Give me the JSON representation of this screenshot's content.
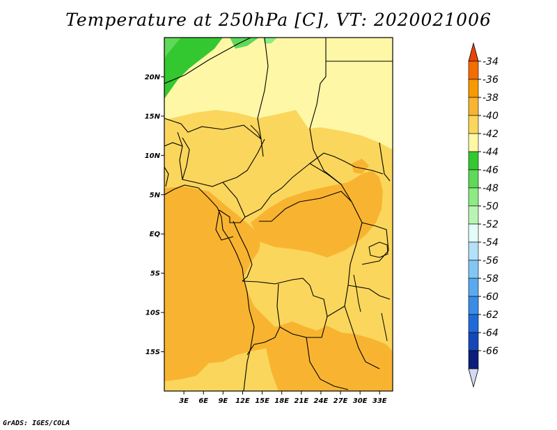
{
  "title": "Temperature at 250hPa [C], VT: 2020021006",
  "credit": "GrADS: IGES/COLA",
  "axes": {
    "lat_labels": [
      "20N",
      "15N",
      "10N",
      "5N",
      "EQ",
      "5S",
      "10S",
      "15S"
    ],
    "lat_values": [
      20,
      15,
      10,
      5,
      0,
      -5,
      -10,
      -15
    ],
    "lon_labels": [
      "3E",
      "6E",
      "9E",
      "12E",
      "15E",
      "18E",
      "21E",
      "24E",
      "27E",
      "30E",
      "33E"
    ],
    "lon_values": [
      3,
      6,
      9,
      12,
      15,
      18,
      21,
      24,
      27,
      30,
      33
    ],
    "lon_range": [
      0,
      35
    ],
    "lat_range": [
      -20,
      25
    ]
  },
  "colorbar": {
    "labels": [
      "-34",
      "-36",
      "-38",
      "-40",
      "-42",
      "-44",
      "-46",
      "-48",
      "-50",
      "-52",
      "-54",
      "-56",
      "-58",
      "-60",
      "-62",
      "-64",
      "-66"
    ],
    "colors": [
      "#e94400",
      "#f46d00",
      "#f59a00",
      "#f8b430",
      "#fbd65c",
      "#fef7a6",
      "#34c830",
      "#5ed958",
      "#8ceb83",
      "#baf4b4",
      "#e2fcf8",
      "#b4e0f8",
      "#82c6f4",
      "#5aaaf0",
      "#3a8ce6",
      "#1f6ad8",
      "#1448b8",
      "#0c1e7a",
      "#d4d8f2"
    ]
  },
  "colors": {
    "lt42": "#fef7a6",
    "lt40": "#fbd65c",
    "lt38": "#f8b430",
    "green1": "#34c830",
    "green2": "#5ed958",
    "green3": "#8ceb83"
  }
}
